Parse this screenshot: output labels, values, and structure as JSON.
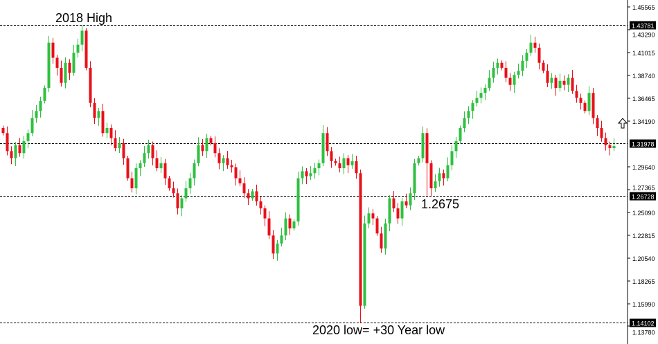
{
  "chart_data": {
    "type": "candlestick",
    "title": "",
    "ylim": [
      1.1378,
      1.4625
    ],
    "y_ticks": [
      "1.45565",
      "1.43290",
      "1.41015",
      "1.38740",
      "1.36465",
      "1.34190",
      "1.29640",
      "1.27365",
      "1.25090",
      "1.22815",
      "1.20540",
      "1.18265",
      "1.15990",
      "1.13780"
    ],
    "grid": false,
    "colors": {
      "bull": "#2fc040",
      "bear": "#e8101a",
      "line": "#000000"
    },
    "wick": 0.006,
    "closes": [
      1.33,
      1.312,
      1.305,
      1.318,
      1.31,
      1.322,
      1.33,
      1.345,
      1.352,
      1.362,
      1.375,
      1.42,
      1.405,
      1.395,
      1.38,
      1.4,
      1.39,
      1.41,
      1.418,
      1.432,
      1.395,
      1.36,
      1.345,
      1.352,
      1.33,
      1.335,
      1.325,
      1.315,
      1.32,
      1.305,
      1.285,
      1.275,
      1.295,
      1.3,
      1.31,
      1.318,
      1.305,
      1.295,
      1.3,
      1.285,
      1.275,
      1.27,
      1.255,
      1.265,
      1.275,
      1.285,
      1.3,
      1.318,
      1.312,
      1.325,
      1.32,
      1.31,
      1.3,
      1.305,
      1.298,
      1.296,
      1.285,
      1.28,
      1.27,
      1.265,
      1.272,
      1.262,
      1.255,
      1.245,
      1.228,
      1.21,
      1.22,
      1.228,
      1.245,
      1.235,
      1.242,
      1.285,
      1.292,
      1.287,
      1.29,
      1.295,
      1.3,
      1.33,
      1.312,
      1.302,
      1.3,
      1.295,
      1.305,
      1.298,
      1.302,
      1.29,
      1.158,
      1.24,
      1.25,
      1.245,
      1.23,
      1.215,
      1.24,
      1.265,
      1.255,
      1.245,
      1.262,
      1.258,
      1.27,
      1.3,
      1.305,
      1.33,
      1.3,
      1.275,
      1.282,
      1.29,
      1.285,
      1.298,
      1.312,
      1.322,
      1.335,
      1.345,
      1.352,
      1.36,
      1.365,
      1.37,
      1.375,
      1.385,
      1.395,
      1.4,
      1.395,
      1.385,
      1.378,
      1.388,
      1.392,
      1.402,
      1.41,
      1.42,
      1.415,
      1.4,
      1.392,
      1.38,
      1.385,
      1.375,
      1.382,
      1.378,
      1.385,
      1.372,
      1.365,
      1.36,
      1.352,
      1.37,
      1.345,
      1.335,
      1.325,
      1.318,
      1.315,
      1.317
    ],
    "first_open": 1.335,
    "special_wicks": [
      {
        "index": 19,
        "high": 1.4378
      },
      {
        "index": 86,
        "low": 1.141
      },
      {
        "index": 102,
        "low": 1.2675
      }
    ],
    "levels": [
      {
        "value": 1.43781,
        "label": "1.43781"
      },
      {
        "value": 1.31978,
        "label": "1.31978"
      },
      {
        "value": 1.26728,
        "label": "1.26728"
      },
      {
        "value": 1.14102,
        "label": "1.14102"
      }
    ],
    "annotations": [
      {
        "text": "2018 High"
      },
      {
        "text": "1.2675"
      },
      {
        "text": "2020 low= +30 Year low"
      }
    ]
  },
  "icons": {
    "current_marker": "up-arrow-icon"
  }
}
